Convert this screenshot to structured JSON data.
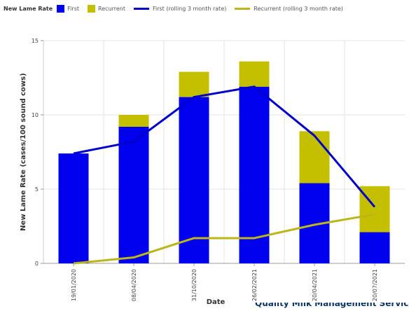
{
  "legend": {
    "title": "New Lame Rate",
    "items": [
      {
        "label": "First",
        "kind": "box",
        "color": "#0000ee"
      },
      {
        "label": "Recurrent",
        "kind": "box",
        "color": "#c4c000"
      },
      {
        "label": "First (rolling 3 month rate)",
        "kind": "line",
        "color": "#0000cc"
      },
      {
        "label": "Recurrent (rolling 3 month rate)",
        "kind": "line",
        "color": "#bdb519"
      }
    ]
  },
  "footer_text": "Quality Milk Management Services",
  "chart_data": {
    "type": "bar",
    "stacked": true,
    "categories": [
      "19/01/2020",
      "08/04/2020",
      "31/10/2020",
      "26/02/2021",
      "20/04/2021",
      "20/07/2021"
    ],
    "series": [
      {
        "name": "First",
        "type": "bar",
        "color": "#0000ee",
        "values": [
          7.4,
          9.2,
          11.2,
          11.9,
          5.4,
          2.1
        ]
      },
      {
        "name": "Recurrent",
        "type": "bar",
        "color": "#c4c000",
        "values": [
          0,
          0.8,
          1.7,
          1.7,
          3.5,
          3.1
        ]
      },
      {
        "name": "First (rolling 3 month rate)",
        "type": "line",
        "color": "#0000cc",
        "values": [
          7.4,
          8.2,
          11.2,
          11.9,
          8.6,
          3.8
        ]
      },
      {
        "name": "Recurrent (rolling 3 month rate)",
        "type": "line",
        "color": "#bdb519",
        "values": [
          0,
          0.4,
          1.7,
          1.7,
          2.6,
          3.3
        ]
      }
    ],
    "xlabel": "Date",
    "ylabel": "New Lame Rate (cases/100 sound cows)",
    "ylim": [
      0,
      15
    ],
    "yticks": [
      0,
      5,
      10,
      15
    ],
    "grid": true,
    "legend_position": "top-left"
  }
}
